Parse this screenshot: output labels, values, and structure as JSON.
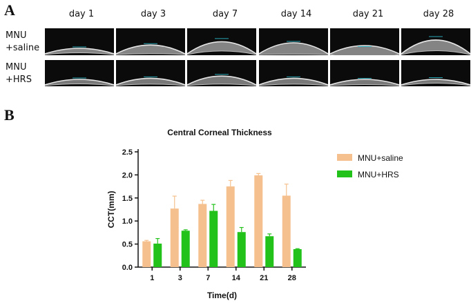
{
  "panel_a": {
    "letter": "A",
    "days": [
      "day 1",
      "day 3",
      "day 7",
      "day 14",
      "day 21",
      "day 28"
    ],
    "rows": [
      {
        "line1": "MNU",
        "line2": "+saline"
      },
      {
        "line1": "MNU",
        "line2": "+HRS"
      }
    ]
  },
  "panel_b": {
    "letter": "B"
  },
  "chart_data": {
    "type": "bar",
    "title": "Central Corneal Thickness",
    "xlabel": "Time(d)",
    "ylabel": "CCT(mm)",
    "categories": [
      "1",
      "3",
      "7",
      "14",
      "21",
      "28"
    ],
    "ylim": [
      0,
      2.5
    ],
    "yticks": [
      "0.0",
      "0.5",
      "1.0",
      "1.5",
      "2.0",
      "2.5"
    ],
    "legend_position": "top-right",
    "series": [
      {
        "name": "MNU+saline",
        "color": "#f5c08e",
        "values": [
          0.56,
          1.27,
          1.37,
          1.75,
          1.99,
          1.55
        ],
        "errors": [
          0.02,
          0.27,
          0.08,
          0.13,
          0.04,
          0.25
        ]
      },
      {
        "name": "MNU+HRS",
        "color": "#22c21b",
        "values": [
          0.51,
          0.79,
          1.22,
          0.76,
          0.67,
          0.39
        ],
        "errors": [
          0.11,
          0.02,
          0.14,
          0.1,
          0.05,
          0.01
        ]
      }
    ]
  }
}
